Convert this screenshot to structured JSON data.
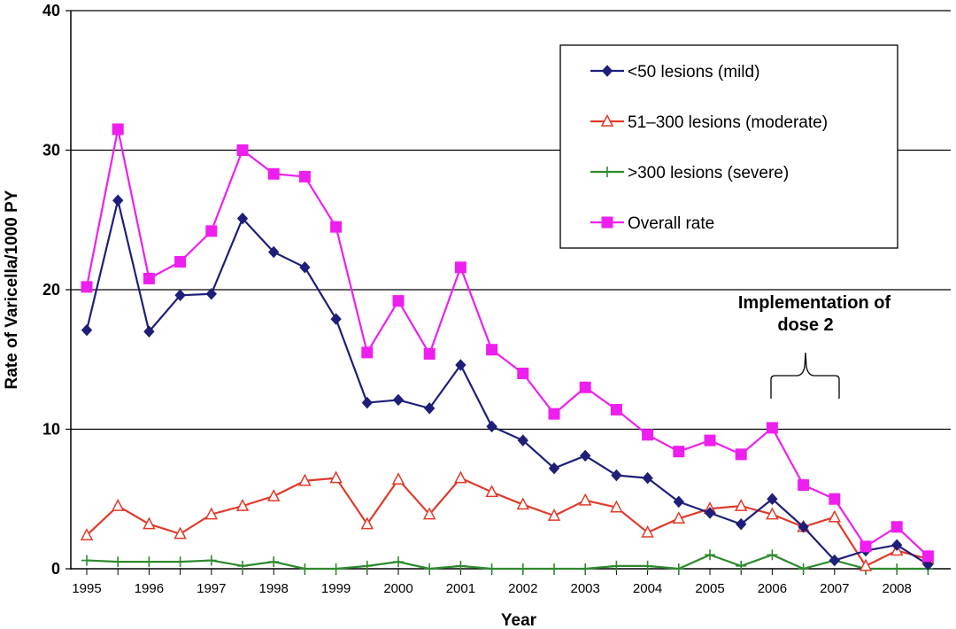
{
  "chart_data": {
    "type": "line",
    "xlabel": "Year",
    "ylabel": "Rate of Varicella/1000 PY",
    "ylim": [
      0,
      40
    ],
    "yticks": [
      "0",
      "10",
      "20",
      "30",
      "40"
    ],
    "xticks": [
      "1995",
      "1996",
      "1997",
      "1998",
      "1999",
      "2000",
      "2001",
      "2002",
      "2003",
      "2004",
      "2005",
      "2006",
      "2007",
      "2008"
    ],
    "grid": "horizontal",
    "legend_position": "top-right",
    "x": [
      1995.0,
      1995.5,
      1996.0,
      1996.5,
      1997.0,
      1997.5,
      1998.0,
      1998.5,
      1999.0,
      1999.5,
      2000.0,
      2000.5,
      2001.0,
      2001.5,
      2002.0,
      2002.5,
      2003.0,
      2003.5,
      2004.0,
      2004.5,
      2005.0,
      2005.5,
      2006.0,
      2006.5,
      2007.0,
      2007.5,
      2008.0,
      2008.5
    ],
    "series": [
      {
        "name": "<50 lesions (mild)",
        "color": "#1f1f7a",
        "marker": "diamond",
        "values": [
          17.1,
          26.4,
          17.0,
          19.6,
          19.7,
          25.1,
          22.7,
          21.6,
          17.9,
          11.9,
          12.1,
          11.5,
          14.6,
          10.2,
          9.2,
          7.2,
          8.1,
          6.7,
          6.5,
          4.8,
          4.0,
          3.2,
          5.0,
          3.0,
          0.6,
          1.3,
          1.7,
          0.3
        ]
      },
      {
        "name": "51–300 lesions (moderate)",
        "color": "#e03a2a",
        "marker": "triangle-open",
        "values": [
          2.4,
          4.5,
          3.2,
          2.5,
          3.9,
          4.5,
          5.2,
          6.3,
          6.5,
          3.2,
          6.4,
          3.9,
          6.5,
          5.5,
          4.6,
          3.8,
          4.9,
          4.4,
          2.6,
          3.6,
          4.3,
          4.5,
          3.9,
          3.0,
          3.7,
          0.2,
          1.3,
          0.7
        ]
      },
      {
        "name": ">300 lesions (severe)",
        "color": "#2c8a2c",
        "marker": "plus",
        "values": [
          0.6,
          0.5,
          0.5,
          0.5,
          0.6,
          0.2,
          0.5,
          0.0,
          0.0,
          0.2,
          0.5,
          0.0,
          0.2,
          0.0,
          0.0,
          0.0,
          0.0,
          0.2,
          0.2,
          0.0,
          1.0,
          0.2,
          1.0,
          0.0,
          0.6,
          0.0,
          0.0,
          0.0
        ]
      },
      {
        "name": "Overall rate",
        "color": "#ee1fee",
        "marker": "square",
        "values": [
          20.2,
          31.5,
          20.8,
          22.0,
          24.2,
          30.0,
          28.3,
          28.1,
          24.5,
          15.5,
          19.2,
          15.4,
          21.6,
          15.7,
          14.0,
          11.1,
          13.0,
          11.4,
          9.6,
          8.4,
          9.2,
          8.2,
          10.1,
          6.0,
          5.0,
          1.6,
          3.0,
          0.9
        ]
      }
    ],
    "annotation": {
      "line1": "Implementation of",
      "line2": "dose 2"
    }
  }
}
